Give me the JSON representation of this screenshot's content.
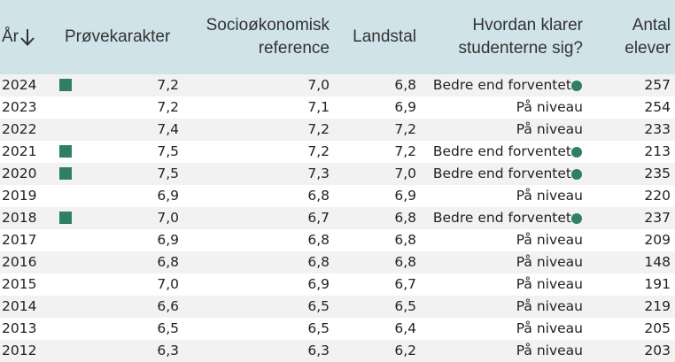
{
  "header": {
    "year": "År",
    "score": "Prøvekarakter",
    "socio_line1": "Socioøkonomisk",
    "socio_line2": "reference",
    "national": "Landstal",
    "how_line1": "Hvordan klarer",
    "how_line2": "studenterne sig?",
    "count_line1": "Antal",
    "count_line2": "elever"
  },
  "colors": {
    "header_bg": "#cfe3e8",
    "indicator": "#2f7f66",
    "stripe": "#f2f2f2"
  },
  "rows": [
    {
      "year": "2024",
      "marker": true,
      "score": "7,2",
      "socio": "7,0",
      "national": "6,8",
      "status": "Bedre end forventet",
      "dot": true,
      "count": "257"
    },
    {
      "year": "2023",
      "marker": false,
      "score": "7,2",
      "socio": "7,1",
      "national": "6,9",
      "status": "På niveau",
      "dot": false,
      "count": "254"
    },
    {
      "year": "2022",
      "marker": false,
      "score": "7,4",
      "socio": "7,2",
      "national": "7,2",
      "status": "På niveau",
      "dot": false,
      "count": "233"
    },
    {
      "year": "2021",
      "marker": true,
      "score": "7,5",
      "socio": "7,2",
      "national": "7,2",
      "status": "Bedre end forventet",
      "dot": true,
      "count": "213"
    },
    {
      "year": "2020",
      "marker": true,
      "score": "7,5",
      "socio": "7,3",
      "national": "7,0",
      "status": "Bedre end forventet",
      "dot": true,
      "count": "235"
    },
    {
      "year": "2019",
      "marker": false,
      "score": "6,9",
      "socio": "6,8",
      "national": "6,9",
      "status": "På niveau",
      "dot": false,
      "count": "220"
    },
    {
      "year": "2018",
      "marker": true,
      "score": "7,0",
      "socio": "6,7",
      "national": "6,8",
      "status": "Bedre end forventet",
      "dot": true,
      "count": "237"
    },
    {
      "year": "2017",
      "marker": false,
      "score": "6,9",
      "socio": "6,8",
      "national": "6,8",
      "status": "På niveau",
      "dot": false,
      "count": "209"
    },
    {
      "year": "2016",
      "marker": false,
      "score": "6,8",
      "socio": "6,8",
      "national": "6,8",
      "status": "På niveau",
      "dot": false,
      "count": "148"
    },
    {
      "year": "2015",
      "marker": false,
      "score": "7,0",
      "socio": "6,9",
      "national": "6,7",
      "status": "På niveau",
      "dot": false,
      "count": "191"
    },
    {
      "year": "2014",
      "marker": false,
      "score": "6,6",
      "socio": "6,5",
      "national": "6,5",
      "status": "På niveau",
      "dot": false,
      "count": "219"
    },
    {
      "year": "2013",
      "marker": false,
      "score": "6,5",
      "socio": "6,5",
      "national": "6,4",
      "status": "På niveau",
      "dot": false,
      "count": "205"
    },
    {
      "year": "2012",
      "marker": false,
      "score": "6,3",
      "socio": "6,3",
      "national": "6,2",
      "status": "På niveau",
      "dot": false,
      "count": "203"
    }
  ]
}
